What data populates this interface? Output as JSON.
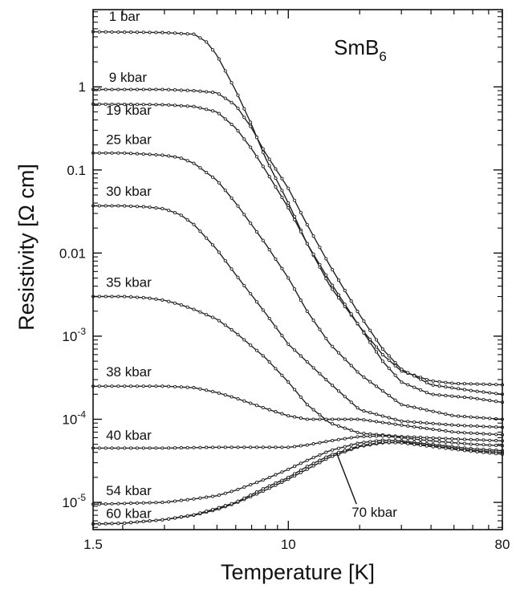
{
  "chart_data": {
    "type": "line",
    "title": "SmB",
    "title_subscript": "6",
    "xlabel": "Temperature [K]",
    "ylabel": "Resistivity [Ω cm]",
    "xscale": "log",
    "yscale": "log",
    "xlim": [
      1.5,
      80
    ],
    "ylim": [
      4.7e-06,
      8.5
    ],
    "x_ticks": [
      {
        "value": 1.5,
        "label": "1.5"
      },
      {
        "value": 10,
        "label": "10"
      },
      {
        "value": 80,
        "label": "80"
      }
    ],
    "y_ticks": [
      {
        "value": 1,
        "base": "1",
        "exp": ""
      },
      {
        "value": 0.1,
        "base": "0.1",
        "exp": ""
      },
      {
        "value": 0.01,
        "base": "0.01",
        "exp": ""
      },
      {
        "value": 0.001,
        "base": "10",
        "exp": "-3"
      },
      {
        "value": 0.0001,
        "base": "10",
        "exp": "-4"
      },
      {
        "value": 1e-05,
        "base": "10",
        "exp": "-5"
      }
    ],
    "grid": false,
    "legend": "none",
    "series": [
      {
        "name": "1 bar",
        "points": [
          [
            1.5,
            4.6
          ],
          [
            3,
            4.5
          ],
          [
            4,
            4.3
          ],
          [
            4.5,
            3.5
          ],
          [
            5,
            2.4
          ],
          [
            6,
            0.9
          ],
          [
            7,
            0.35
          ],
          [
            8,
            0.14
          ],
          [
            10,
            0.04
          ],
          [
            12,
            0.013
          ],
          [
            15,
            0.004
          ],
          [
            20,
            0.0013
          ],
          [
            25,
            0.0006
          ],
          [
            30,
            0.00038
          ],
          [
            40,
            0.00029
          ],
          [
            50,
            0.00027
          ],
          [
            80,
            0.00026
          ]
        ]
      },
      {
        "name": "9 kbar",
        "points": [
          [
            1.5,
            0.93
          ],
          [
            3,
            0.93
          ],
          [
            4,
            0.9
          ],
          [
            5,
            0.85
          ],
          [
            6,
            0.6
          ],
          [
            7,
            0.32
          ],
          [
            8,
            0.16
          ],
          [
            10,
            0.06
          ],
          [
            12,
            0.022
          ],
          [
            15,
            0.007
          ],
          [
            20,
            0.0018
          ],
          [
            25,
            0.0007
          ],
          [
            30,
            0.0004
          ],
          [
            40,
            0.00026
          ],
          [
            60,
            0.00022
          ],
          [
            80,
            0.0002
          ]
        ]
      },
      {
        "name": "19 kbar",
        "points": [
          [
            1.5,
            0.62
          ],
          [
            3,
            0.61
          ],
          [
            4,
            0.58
          ],
          [
            5,
            0.5
          ],
          [
            6,
            0.32
          ],
          [
            7,
            0.18
          ],
          [
            8,
            0.1
          ],
          [
            10,
            0.035
          ],
          [
            12,
            0.013
          ],
          [
            15,
            0.0045
          ],
          [
            20,
            0.0013
          ],
          [
            25,
            0.0005
          ],
          [
            30,
            0.00028
          ],
          [
            40,
            0.0002
          ],
          [
            60,
            0.00018
          ],
          [
            80,
            0.00016
          ]
        ]
      },
      {
        "name": "25 kbar",
        "points": [
          [
            1.5,
            0.16
          ],
          [
            2,
            0.16
          ],
          [
            2.5,
            0.155
          ],
          [
            3,
            0.15
          ],
          [
            3.5,
            0.14
          ],
          [
            4,
            0.12
          ],
          [
            5,
            0.075
          ],
          [
            6,
            0.04
          ],
          [
            8,
            0.013
          ],
          [
            10,
            0.005
          ],
          [
            12,
            0.002
          ],
          [
            15,
            0.0008
          ],
          [
            20,
            0.00035
          ],
          [
            30,
            0.00015
          ],
          [
            50,
            0.00011
          ],
          [
            80,
            0.0001
          ]
        ]
      },
      {
        "name": "30 kbar",
        "points": [
          [
            1.5,
            0.037
          ],
          [
            2,
            0.037
          ],
          [
            2.5,
            0.036
          ],
          [
            3,
            0.034
          ],
          [
            3.5,
            0.029
          ],
          [
            4,
            0.022
          ],
          [
            5,
            0.011
          ],
          [
            6,
            0.0055
          ],
          [
            8,
            0.0019
          ],
          [
            10,
            0.0008
          ],
          [
            15,
            0.00027
          ],
          [
            20,
            0.00013
          ],
          [
            30,
            9.5e-05
          ],
          [
            50,
            8.5e-05
          ],
          [
            80,
            8e-05
          ]
        ]
      },
      {
        "name": "35 kbar",
        "points": [
          [
            1.5,
            0.003
          ],
          [
            2,
            0.003
          ],
          [
            2.5,
            0.0029
          ],
          [
            3,
            0.0027
          ],
          [
            3.5,
            0.0024
          ],
          [
            4,
            0.0021
          ],
          [
            5,
            0.0016
          ],
          [
            6,
            0.0011
          ],
          [
            8,
            0.00055
          ],
          [
            10,
            0.00028
          ],
          [
            12,
            0.00015
          ],
          [
            15,
            9e-05
          ],
          [
            20,
            6.8e-05
          ],
          [
            30,
            6.2e-05
          ],
          [
            50,
            5.8e-05
          ],
          [
            80,
            5.5e-05
          ]
        ]
      },
      {
        "name": "38 kbar",
        "points": [
          [
            1.5,
            0.00025
          ],
          [
            2,
            0.00025
          ],
          [
            3,
            0.00025
          ],
          [
            4,
            0.00024
          ],
          [
            5,
            0.00021
          ],
          [
            6,
            0.00018
          ],
          [
            8,
            0.000135
          ],
          [
            10,
            0.00011
          ],
          [
            12,
            0.0001
          ],
          [
            15,
            0.0001
          ],
          [
            20,
            0.0001
          ],
          [
            30,
            8.5e-05
          ],
          [
            50,
            7e-05
          ],
          [
            80,
            6.5e-05
          ]
        ]
      },
      {
        "name": "40 kbar",
        "points": [
          [
            1.5,
            4.5e-05
          ],
          [
            3,
            4.5e-05
          ],
          [
            5,
            4.6e-05
          ],
          [
            8,
            4.6e-05
          ],
          [
            10,
            4.6e-05
          ],
          [
            12,
            4.9e-05
          ],
          [
            15,
            5.5e-05
          ],
          [
            20,
            6.2e-05
          ],
          [
            25,
            6.3e-05
          ],
          [
            30,
            6e-05
          ],
          [
            40,
            5.5e-05
          ],
          [
            60,
            5e-05
          ],
          [
            80,
            4.8e-05
          ]
        ]
      },
      {
        "name": "54 kbar",
        "points": [
          [
            1.5,
            9.5e-06
          ],
          [
            2,
            9.7e-06
          ],
          [
            3,
            1e-05
          ],
          [
            4,
            1.1e-05
          ],
          [
            5,
            1.2e-05
          ],
          [
            6,
            1.4e-05
          ],
          [
            8,
            1.9e-05
          ],
          [
            10,
            2.5e-05
          ],
          [
            12,
            3.2e-05
          ],
          [
            15,
            4.2e-05
          ],
          [
            20,
            5.2e-05
          ],
          [
            25,
            5.6e-05
          ],
          [
            30,
            5.5e-05
          ],
          [
            40,
            5e-05
          ],
          [
            60,
            4.4e-05
          ],
          [
            80,
            4.2e-05
          ]
        ]
      },
      {
        "name": "60 kbar",
        "points": [
          [
            1.5,
            5.5e-06
          ],
          [
            2,
            5.6e-06
          ],
          [
            3,
            6.2e-06
          ],
          [
            4,
            7e-06
          ],
          [
            5,
            8.2e-06
          ],
          [
            6,
            9.8e-06
          ],
          [
            8,
            1.4e-05
          ],
          [
            10,
            1.9e-05
          ],
          [
            12,
            2.5e-05
          ],
          [
            15,
            3.5e-05
          ],
          [
            20,
            4.7e-05
          ],
          [
            25,
            5.2e-05
          ],
          [
            30,
            5.3e-05
          ],
          [
            40,
            4.8e-05
          ],
          [
            60,
            4.2e-05
          ],
          [
            80,
            4e-05
          ]
        ]
      },
      {
        "name": "70 kbar",
        "points": [
          [
            1.5,
            5.5e-06
          ],
          [
            2,
            5.6e-06
          ],
          [
            3,
            6.2e-06
          ],
          [
            4,
            7.1e-06
          ],
          [
            5,
            8.5e-06
          ],
          [
            6,
            1e-05
          ],
          [
            8,
            1.5e-05
          ],
          [
            10,
            2e-05
          ],
          [
            12,
            2.7e-05
          ],
          [
            15,
            3.7e-05
          ],
          [
            20,
            4.8e-05
          ],
          [
            25,
            5.3e-05
          ],
          [
            30,
            5.2e-05
          ],
          [
            40,
            4.7e-05
          ],
          [
            60,
            4.1e-05
          ],
          [
            80,
            3.8e-05
          ]
        ]
      }
    ],
    "annotations": [
      {
        "text": "1 bar",
        "x": 1.75,
        "y": 6.2
      },
      {
        "text": "9 kbar",
        "x": 1.75,
        "y": 1.15
      },
      {
        "text": "19 kbar",
        "x": 1.7,
        "y": 0.46
      },
      {
        "text": "25 kbar",
        "x": 1.7,
        "y": 0.205
      },
      {
        "text": "30 kbar",
        "x": 1.7,
        "y": 0.049
      },
      {
        "text": "35 kbar",
        "x": 1.7,
        "y": 0.0039
      },
      {
        "text": "38 kbar",
        "x": 1.7,
        "y": 0.00033
      },
      {
        "text": "40 kbar",
        "x": 1.7,
        "y": 5.7e-05
      },
      {
        "text": "54 kbar",
        "x": 1.7,
        "y": 1.22e-05
      },
      {
        "text": "60 kbar",
        "x": 1.7,
        "y": 6.5e-06
      },
      {
        "text": "70 kbar",
        "x": 18.5,
        "y": 6.7e-06,
        "arrow_to": [
          16,
          3.9e-05
        ]
      }
    ]
  }
}
